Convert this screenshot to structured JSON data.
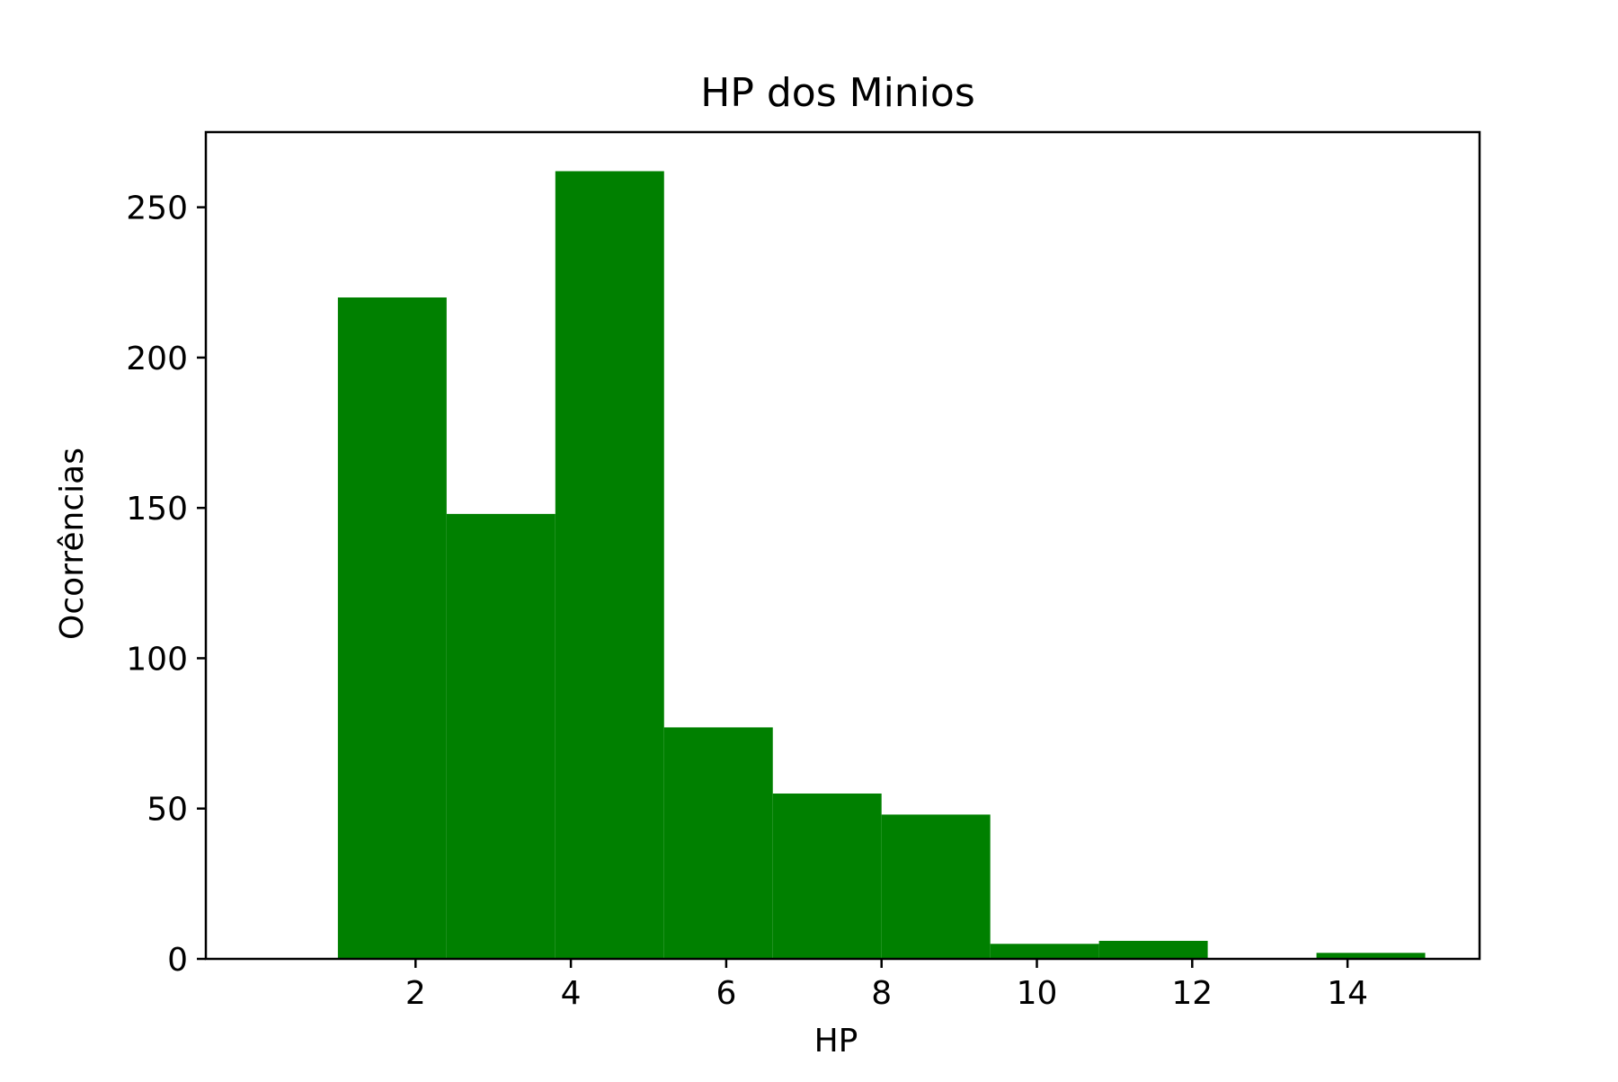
{
  "chart_data": {
    "type": "bar",
    "title": "HP dos Minios",
    "xlabel": "HP",
    "ylabel": "Ocorrências",
    "bin_edges": [
      1.0,
      2.4,
      3.8,
      5.2,
      6.6,
      8.0,
      9.4,
      10.8,
      12.2,
      13.6,
      15.0
    ],
    "values": [
      220,
      148,
      262,
      77,
      55,
      48,
      5,
      6,
      0,
      2
    ],
    "xlim": [
      -0.7,
      15.7
    ],
    "ylim": [
      0,
      275
    ],
    "xticks": [
      2,
      4,
      6,
      8,
      10,
      12,
      14
    ],
    "yticks": [
      0,
      50,
      100,
      150,
      200,
      250
    ],
    "color": "#008000",
    "grid": false
  }
}
